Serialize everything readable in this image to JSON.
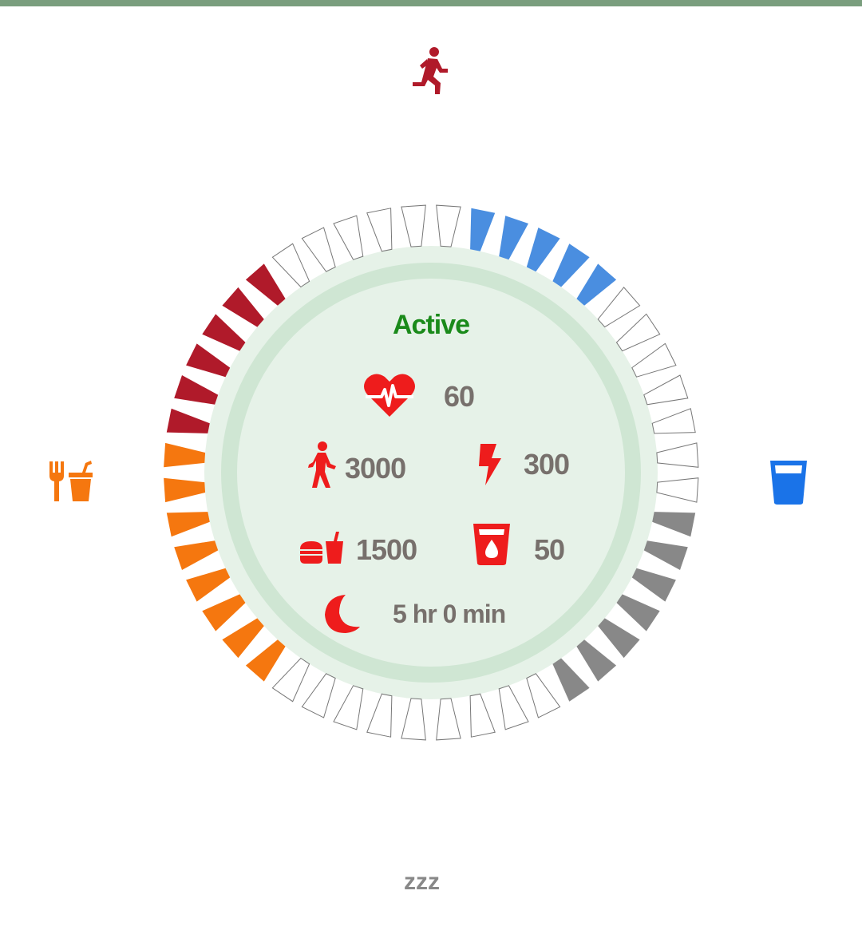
{
  "app": {
    "status": "Active"
  },
  "colors": {
    "activity": "#b01a2a",
    "water": "#4a8ee0",
    "sleep": "#888888",
    "food": "#f5770f",
    "inner_ring": "#cfe6d3",
    "inner_fill": "#e6f2e8",
    "status_text": "#1a8a1a",
    "stat_icon": "#ee1c1c",
    "stat_text": "#77706c",
    "top_bar": "#7a9e7e"
  },
  "ring": {
    "segments_total": 48,
    "quadrants": [
      {
        "name": "activity",
        "icon": "running-icon",
        "filled": 6,
        "of": 12
      },
      {
        "name": "water",
        "icon": "water-glass-icon",
        "filled": 5,
        "of": 12
      },
      {
        "name": "sleep",
        "icon": "zzz-icon",
        "filled": 7,
        "of": 12
      },
      {
        "name": "food",
        "icon": "food-drink-icon",
        "filled": 8,
        "of": 12
      }
    ]
  },
  "corners": {
    "sleep_label": "zzz"
  },
  "stats": {
    "heart_rate": "60",
    "steps": "3000",
    "energy": "300",
    "food": "1500",
    "water": "50",
    "sleep": "5 hr 0 min"
  }
}
